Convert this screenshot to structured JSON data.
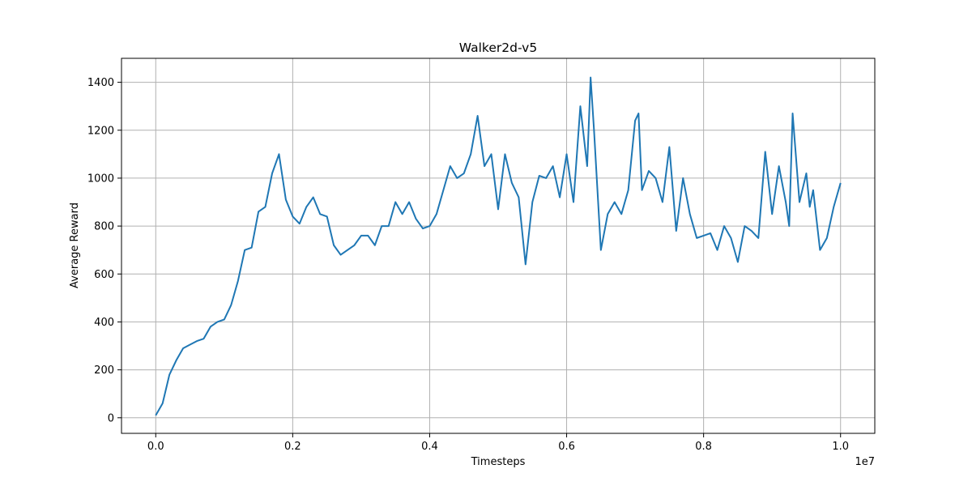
{
  "chart_data": {
    "type": "line",
    "title": "Walker2d-v5",
    "xlabel": "Timesteps",
    "ylabel": "Average Reward",
    "x_offset_label": "1e7",
    "xlim": [
      -0.05,
      1.05
    ],
    "ylim": [
      -65,
      1500
    ],
    "x_ticks": [
      0.0,
      0.2,
      0.4,
      0.6,
      0.8,
      1.0
    ],
    "x_tick_labels": [
      "0.0",
      "0.2",
      "0.4",
      "0.6",
      "0.8",
      "1.0"
    ],
    "y_ticks": [
      0,
      200,
      400,
      600,
      800,
      1000,
      1200,
      1400
    ],
    "y_tick_labels": [
      "0",
      "200",
      "400",
      "600",
      "800",
      "1000",
      "1200",
      "1400"
    ],
    "grid": true,
    "line_color": "#1f77b4",
    "x_unit_scale": "1e7",
    "series": [
      {
        "x": [
          0.0,
          0.01,
          0.02,
          0.03,
          0.04,
          0.05,
          0.06,
          0.07,
          0.08,
          0.09,
          0.1,
          0.11,
          0.12,
          0.13,
          0.14,
          0.15,
          0.16,
          0.17,
          0.18,
          0.19,
          0.2,
          0.21,
          0.22,
          0.23,
          0.24,
          0.25,
          0.26,
          0.27,
          0.28,
          0.29,
          0.3,
          0.31,
          0.32,
          0.33,
          0.34,
          0.35,
          0.36,
          0.37,
          0.38,
          0.39,
          0.4,
          0.41,
          0.42,
          0.43,
          0.44,
          0.45,
          0.46,
          0.47,
          0.48,
          0.49,
          0.5,
          0.51,
          0.52,
          0.53,
          0.54,
          0.55,
          0.56,
          0.57,
          0.58,
          0.59,
          0.6,
          0.61,
          0.62,
          0.63,
          0.635,
          0.64,
          0.65,
          0.66,
          0.67,
          0.68,
          0.69,
          0.7,
          0.705,
          0.71,
          0.72,
          0.73,
          0.74,
          0.75,
          0.76,
          0.77,
          0.78,
          0.79,
          0.8,
          0.81,
          0.82,
          0.83,
          0.84,
          0.85,
          0.86,
          0.87,
          0.88,
          0.89,
          0.9,
          0.91,
          0.92,
          0.925,
          0.93,
          0.94,
          0.95,
          0.955,
          0.96,
          0.97,
          0.98,
          0.99,
          1.0
        ],
        "y": [
          10,
          60,
          180,
          240,
          290,
          305,
          320,
          330,
          380,
          400,
          410,
          470,
          570,
          700,
          710,
          860,
          880,
          1020,
          1100,
          910,
          840,
          810,
          880,
          920,
          850,
          840,
          720,
          680,
          700,
          720,
          760,
          760,
          720,
          800,
          800,
          900,
          850,
          900,
          830,
          790,
          800,
          850,
          950,
          1050,
          1000,
          1020,
          1100,
          1260,
          1050,
          1100,
          870,
          1100,
          980,
          920,
          640,
          900,
          1010,
          1000,
          1050,
          920,
          1100,
          900,
          1300,
          1050,
          1420,
          1200,
          700,
          850,
          900,
          850,
          950,
          1240,
          1270,
          950,
          1030,
          1000,
          900,
          1130,
          780,
          1000,
          850,
          750,
          760,
          770,
          700,
          800,
          750,
          650,
          800,
          780,
          750,
          1110,
          850,
          1050,
          900,
          800,
          1270,
          900,
          1020,
          880,
          950,
          700,
          750,
          880,
          980
        ]
      }
    ]
  }
}
